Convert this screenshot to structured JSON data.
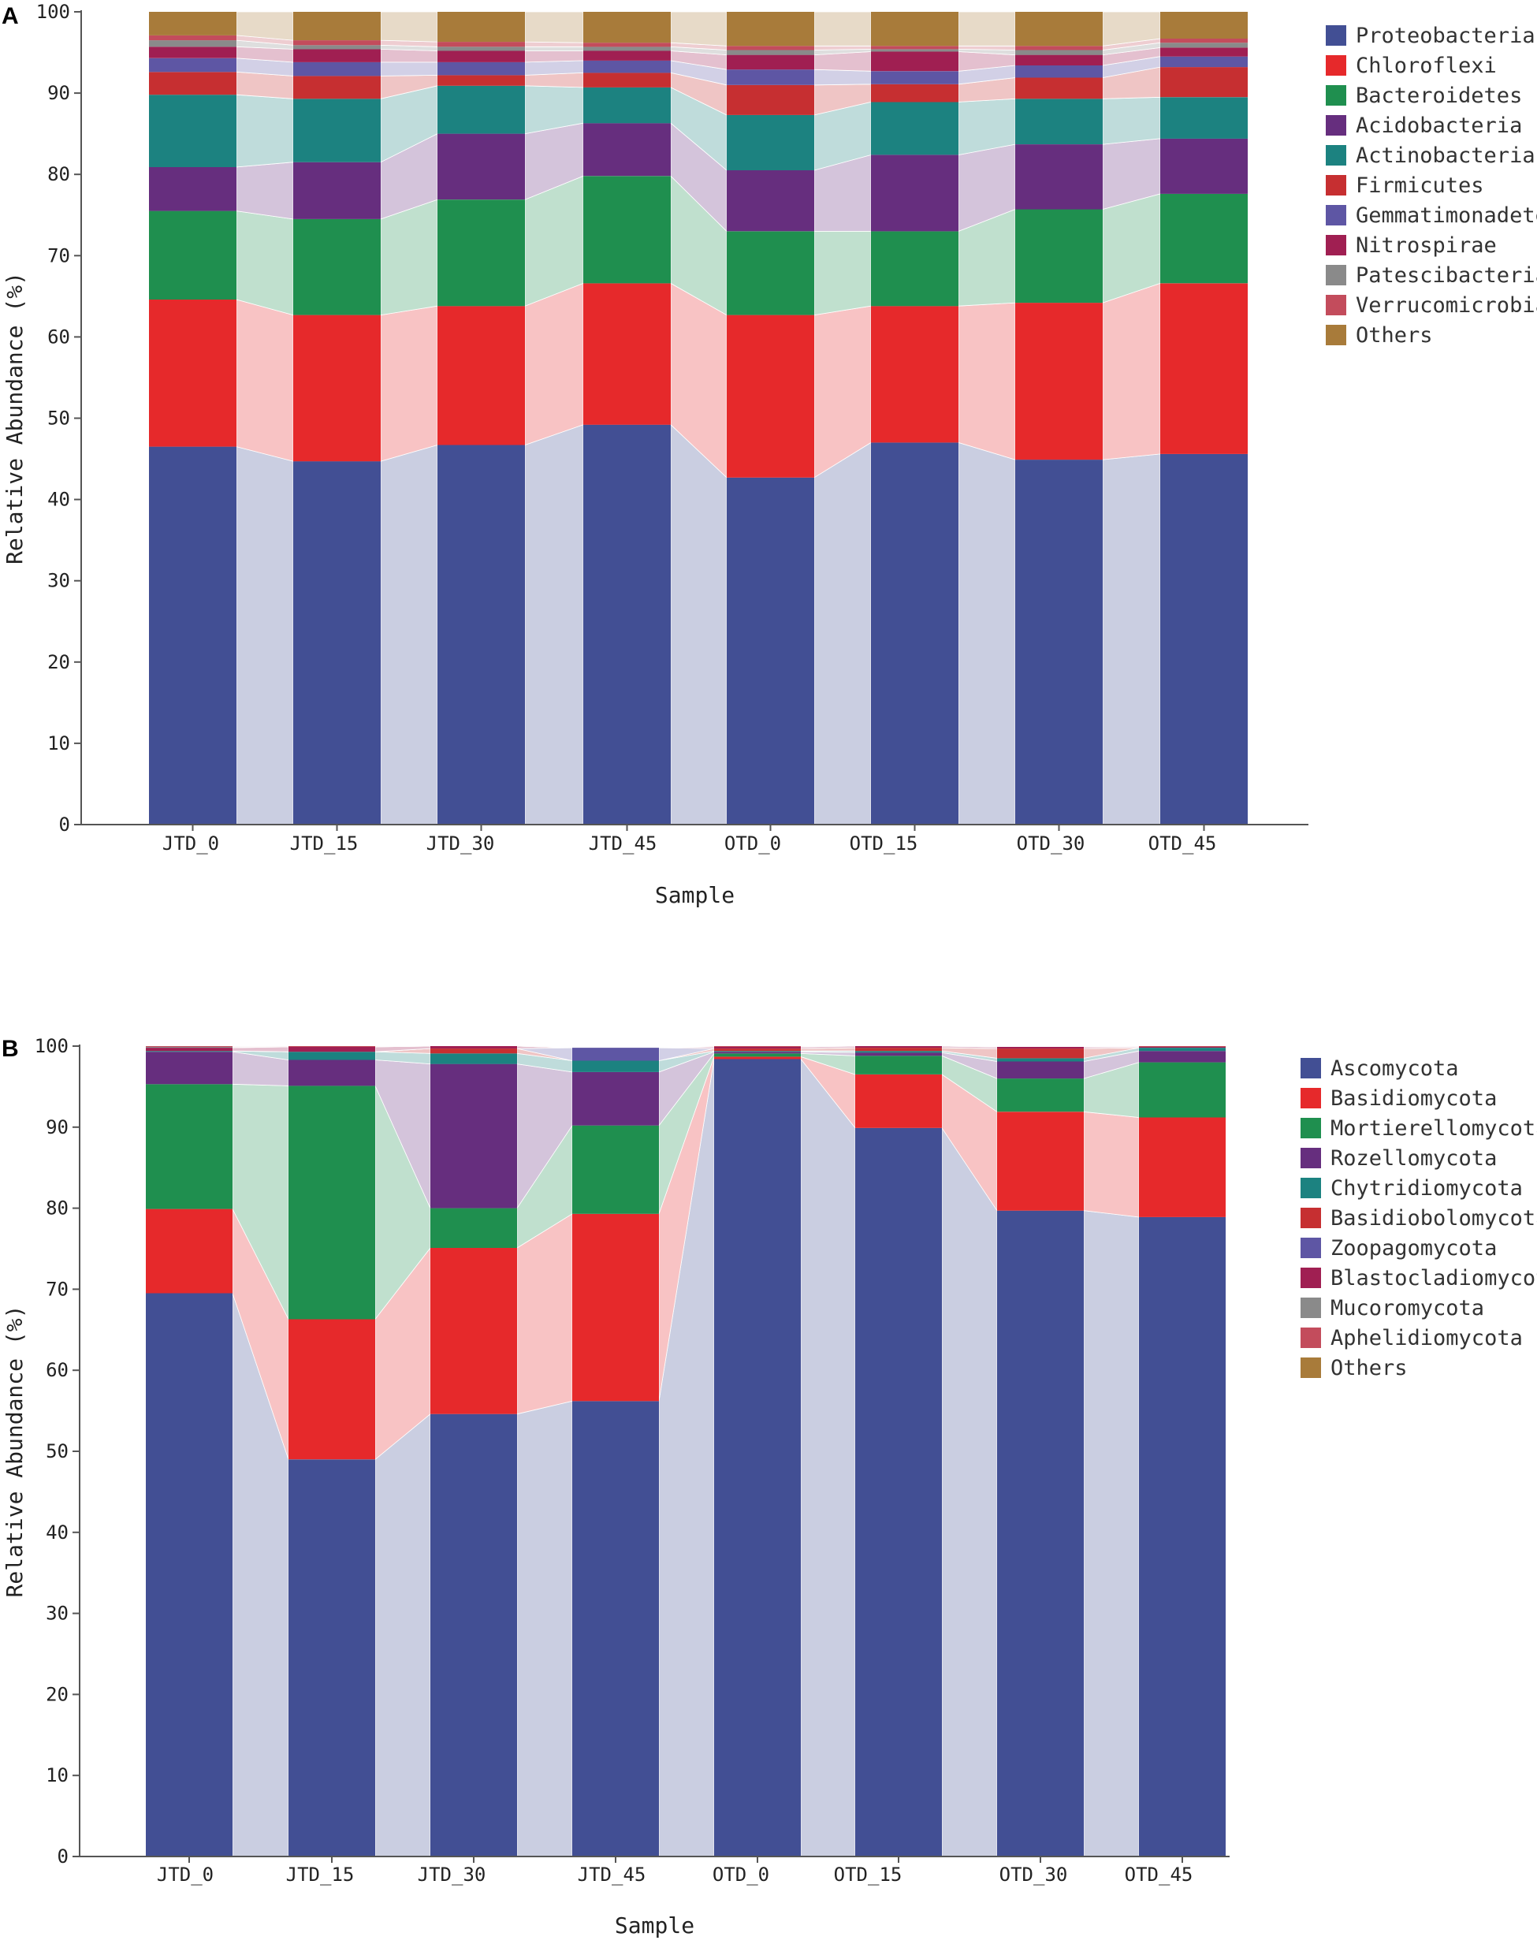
{
  "chart_data": [
    {
      "type": "stacked-bar",
      "panel_label": "A",
      "xlabel": "Sample",
      "ylabel": "Relative Abundance (%)",
      "ylim": [
        0,
        100
      ],
      "yticks": [
        0,
        10,
        20,
        30,
        40,
        50,
        60,
        70,
        80,
        90,
        100
      ],
      "legend_position": "right",
      "categories": [
        "JTD_0",
        "JTD_15",
        "JTD_30",
        "JTD_45",
        "OTD_0",
        "OTD_15",
        "OTD_30",
        "OTD_45"
      ],
      "series": [
        {
          "name": "Proteobacteria",
          "color": "#424f94",
          "values": [
            46.5,
            44.7,
            46.7,
            49.2,
            42.7,
            47.0,
            44.9,
            45.6
          ]
        },
        {
          "name": "Chloroflexi",
          "color": "#e6292b",
          "values": [
            18.1,
            18.0,
            17.1,
            17.4,
            20.0,
            16.8,
            19.3,
            21.0
          ]
        },
        {
          "name": "Bacteroidetes",
          "color": "#1f8f4f",
          "values": [
            10.9,
            11.8,
            13.1,
            13.2,
            10.3,
            9.2,
            11.5,
            11.0
          ]
        },
        {
          "name": "Acidobacteria",
          "color": "#662e7e",
          "values": [
            5.4,
            7.0,
            8.1,
            6.5,
            7.5,
            9.4,
            8.0,
            6.8
          ]
        },
        {
          "name": "Actinobacteria",
          "color": "#1c8280",
          "values": [
            8.9,
            7.8,
            5.9,
            4.4,
            6.8,
            6.5,
            5.6,
            5.1
          ]
        },
        {
          "name": "Firmicutes",
          "color": "#c62f31",
          "values": [
            2.8,
            2.8,
            1.3,
            1.8,
            3.7,
            2.2,
            2.6,
            3.7
          ]
        },
        {
          "name": "Gemmatimonadetes",
          "color": "#5e56a4",
          "values": [
            1.7,
            1.7,
            1.6,
            1.5,
            1.9,
            1.6,
            1.5,
            1.3
          ]
        },
        {
          "name": "Nitrospirae",
          "color": "#a01f52",
          "values": [
            1.4,
            1.6,
            1.4,
            1.2,
            1.8,
            2.4,
            1.3,
            1.1
          ]
        },
        {
          "name": "Patescibacteria",
          "color": "#8a8a8a",
          "values": [
            0.8,
            0.5,
            0.5,
            0.5,
            0.6,
            0.3,
            0.6,
            0.6
          ]
        },
        {
          "name": "Verrucomicrobia",
          "color": "#c34c5c",
          "values": [
            0.6,
            0.6,
            0.6,
            0.5,
            0.5,
            0.4,
            0.5,
            0.5
          ]
        },
        {
          "name": "Others",
          "color": "#a87b3a",
          "values": [
            2.9,
            3.5,
            3.7,
            3.8,
            4.2,
            4.2,
            4.2,
            3.3
          ]
        }
      ]
    },
    {
      "type": "stacked-bar",
      "panel_label": "B",
      "xlabel": "Sample",
      "ylabel": "Relative Abundance (%)",
      "ylim": [
        0,
        100
      ],
      "yticks": [
        0,
        10,
        20,
        30,
        40,
        50,
        60,
        70,
        80,
        90,
        100
      ],
      "legend_position": "right",
      "categories": [
        "JTD_0",
        "JTD_15",
        "JTD_30",
        "JTD_45",
        "OTD_0",
        "OTD_15",
        "OTD_30",
        "OTD_45"
      ],
      "series": [
        {
          "name": "Ascomycota",
          "color": "#424f94",
          "values": [
            69.5,
            49.0,
            54.6,
            56.2,
            98.4,
            89.9,
            79.7,
            78.9
          ]
        },
        {
          "name": "Basidiomycota",
          "color": "#e6292b",
          "values": [
            10.4,
            17.3,
            20.5,
            23.1,
            0.3,
            6.6,
            12.2,
            12.3
          ]
        },
        {
          "name": "Mortierellomycota",
          "color": "#1f8f4f",
          "values": [
            15.4,
            28.8,
            4.9,
            10.9,
            0.4,
            2.3,
            4.1,
            6.8
          ]
        },
        {
          "name": "Rozellomycota",
          "color": "#662e7e",
          "values": [
            4.0,
            3.2,
            17.8,
            6.6,
            0.2,
            0.4,
            2.1,
            1.4
          ]
        },
        {
          "name": "Chytridiomycota",
          "color": "#1c8280",
          "values": [
            0.1,
            1.0,
            1.3,
            1.4,
            0.1,
            0.2,
            0.4,
            0.4
          ]
        },
        {
          "name": "Basidiobolomycota",
          "color": "#c62f31",
          "values": [
            0.0,
            0.0,
            0.6,
            0.0,
            0.3,
            0.4,
            1.2,
            0.0
          ]
        },
        {
          "name": "Zoopagomycota",
          "color": "#5e56a4",
          "values": [
            0.0,
            0.0,
            0.0,
            1.6,
            0.0,
            0.0,
            0.0,
            0.0
          ]
        },
        {
          "name": "Blastocladiomycota",
          "color": "#a01f52",
          "values": [
            0.4,
            0.6,
            0.3,
            0.0,
            0.2,
            0.2,
            0.2,
            0.1
          ]
        },
        {
          "name": "Mucoromycota",
          "color": "#8a8a8a",
          "values": [
            0.1,
            0.0,
            0.0,
            0.0,
            0.0,
            0.0,
            0.0,
            0.0
          ]
        },
        {
          "name": "Aphelidiomycota",
          "color": "#c34c5c",
          "values": [
            0.1,
            0.1,
            0.0,
            0.0,
            0.1,
            0.0,
            0.0,
            0.1
          ]
        },
        {
          "name": "Others",
          "color": "#a87b3a",
          "values": [
            0.0,
            0.0,
            0.0,
            0.0,
            0.0,
            0.0,
            0.0,
            0.0
          ]
        }
      ]
    }
  ]
}
